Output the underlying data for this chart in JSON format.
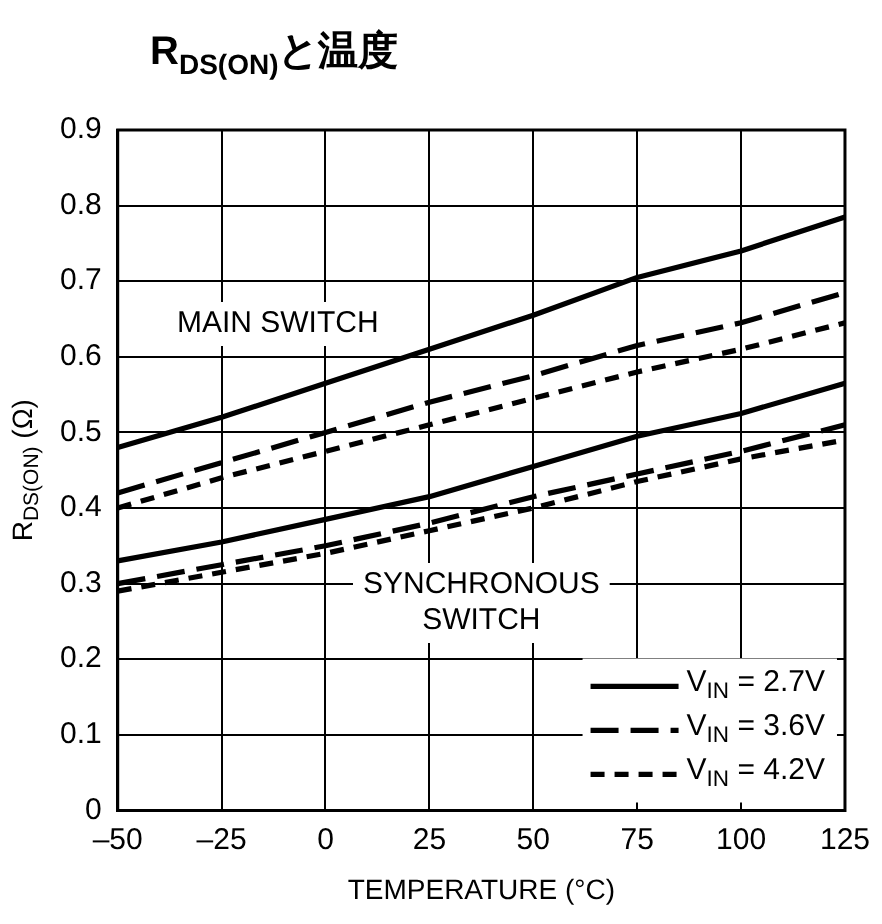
{
  "chart_data": {
    "type": "line",
    "title": "R$_{DS(ON)}$と温度",
    "xlabel": "TEMPERATURE (°C)",
    "ylabel": "R$_{DS(ON)}$ (Ω)",
    "x": [
      -50,
      -25,
      0,
      25,
      50,
      75,
      100,
      125
    ],
    "xlim": [
      -50,
      125
    ],
    "xticks": [
      {
        "value": -50,
        "label": "–50"
      },
      {
        "value": -25,
        "label": "–25"
      },
      0,
      25,
      50,
      75,
      100,
      125
    ],
    "ylim": [
      0,
      0.9
    ],
    "yticks": [
      0,
      0.1,
      0.2,
      0.3,
      0.4,
      0.5,
      0.6,
      0.7,
      0.8,
      0.9
    ],
    "grid": true,
    "legend": "bottom right",
    "marker": "none",
    "series": [
      {
        "name": "V$_{IN}$ = 2.7V",
        "color": "#000000",
        "line_style": "solid",
        "values": [
          0.48,
          0.52,
          0.565,
          0.61,
          0.655,
          0.705,
          0.74,
          0.785
        ]
      },
      {
        "name": "V$_{IN}$ = 3.6V",
        "color": "#000000",
        "line_style": "dashed",
        "values": [
          0.42,
          0.46,
          0.5,
          0.54,
          0.575,
          0.615,
          0.645,
          0.685
        ]
      },
      {
        "name": "V$_{IN}$ = 4.2V",
        "color": "#000000",
        "line_style": "dashed",
        "values": [
          0.4,
          0.44,
          0.475,
          0.51,
          0.545,
          0.58,
          0.61,
          0.645
        ]
      },
      {
        "color": "#000000",
        "line_style": "solid",
        "values": [
          0.33,
          0.355,
          0.385,
          0.415,
          0.455,
          0.495,
          0.525,
          0.565
        ]
      },
      {
        "color": "#000000",
        "line_style": "dashed",
        "values": [
          0.3,
          0.325,
          0.35,
          0.38,
          0.415,
          0.445,
          0.475,
          0.51
        ]
      },
      {
        "color": "#000000",
        "line_style": "dashed",
        "values": [
          0.29,
          0.315,
          0.34,
          0.37,
          0.4,
          0.435,
          0.465,
          0.49
        ]
      }
    ],
    "annotations": [
      "MAIN SWITCH",
      "SYNCHRONOUS\nSWITCH"
    ]
  }
}
